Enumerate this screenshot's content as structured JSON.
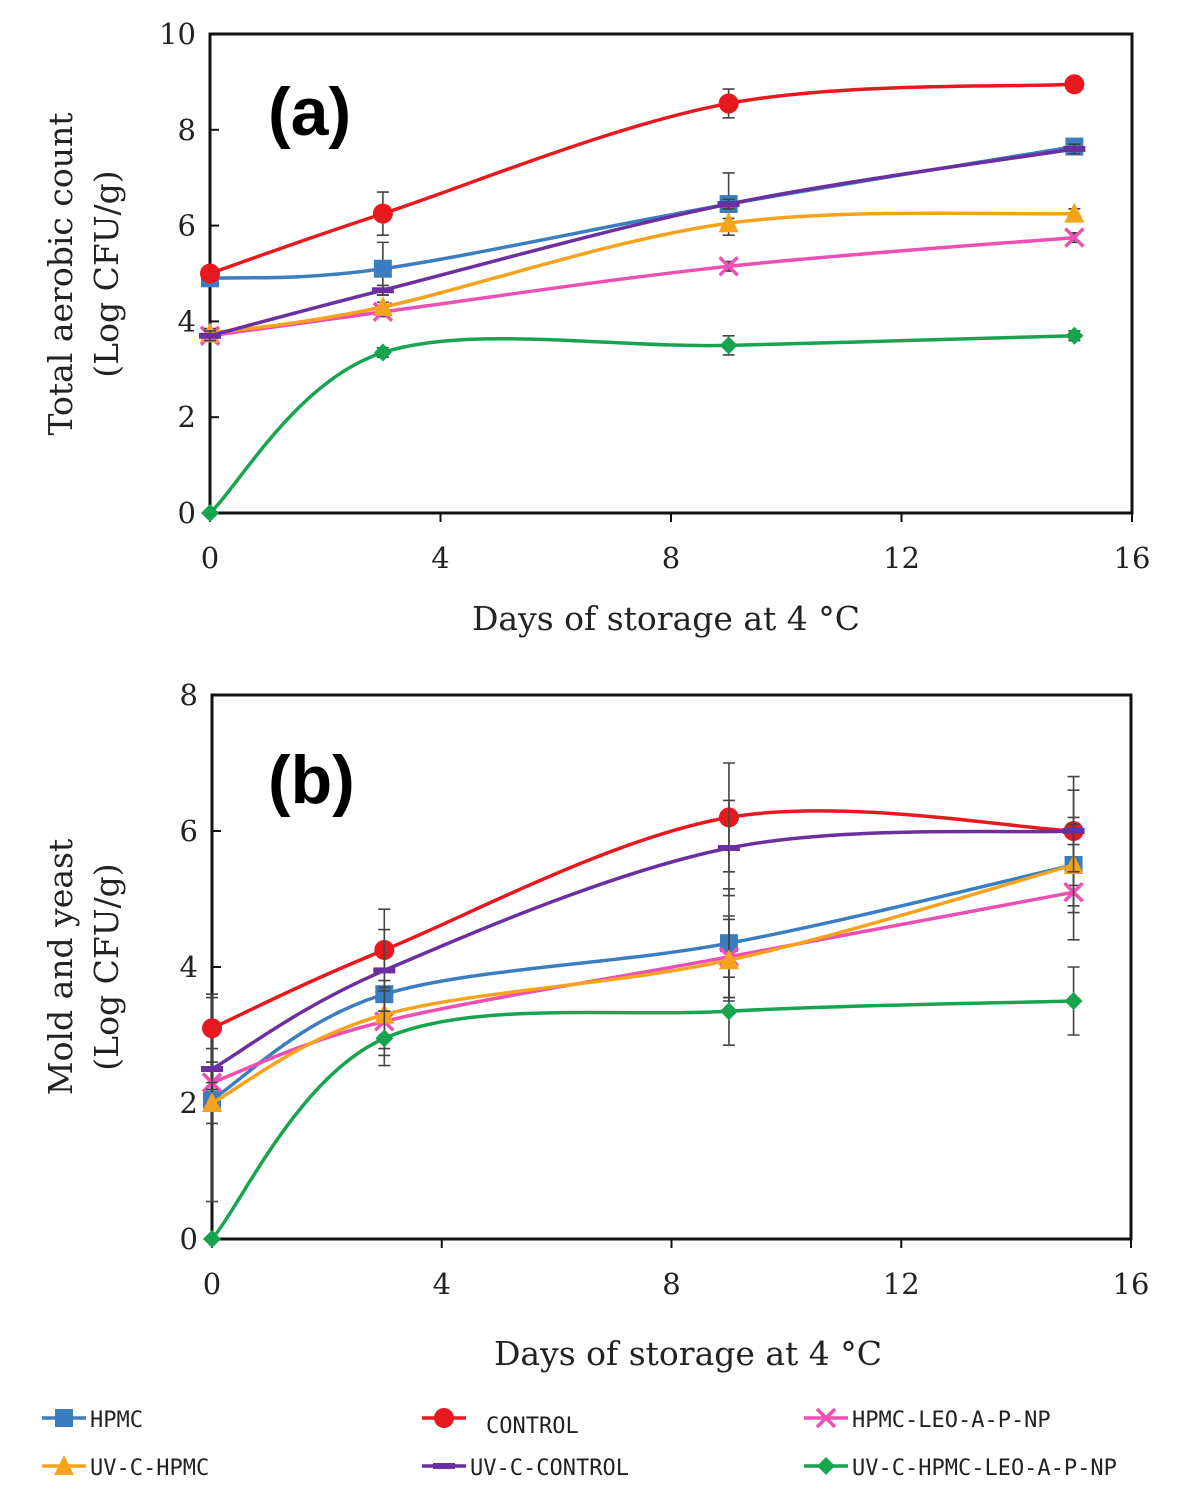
{
  "series_styles": [
    {
      "key": "HPMC",
      "color": "#3a7dc0",
      "marker": "square"
    },
    {
      "key": "CONTROL",
      "color": "#e8181f",
      "marker": "circle"
    },
    {
      "key": "HPMC-LEO-A-P-NP",
      "color": "#ee4fb3",
      "marker": "x"
    },
    {
      "key": "UV-C-HPMC",
      "color": "#f5a21c",
      "marker": "triangle"
    },
    {
      "key": "UV-C-CONTROL",
      "color": "#6b2fa0",
      "marker": "dash"
    },
    {
      "key": "UV-C-HPMC-LEO-A-P-NP",
      "color": "#17a450",
      "marker": "diamond"
    }
  ],
  "legend": {
    "items": [
      "HPMC",
      "CONTROL",
      "HPMC-LEO-A-P-NP",
      "UV-C-HPMC",
      "UV-C-CONTROL",
      "UV-C-HPMC-LEO-A-P-NP"
    ]
  },
  "chart_data": [
    {
      "type": "line",
      "panel_label": "(a)",
      "xlabel": "Days of storage at 4 °C",
      "ylabel_line1": "Total aerobic count",
      "ylabel_line2": "(Log  CFU/g)",
      "xlim": [
        0,
        16
      ],
      "ylim": [
        0,
        10
      ],
      "xticks": [
        "0",
        "4",
        "8",
        "12",
        "16"
      ],
      "yticks": [
        "0",
        "2",
        "4",
        "6",
        "8",
        "10"
      ],
      "x": [
        0,
        3,
        9,
        15
      ],
      "series": [
        {
          "name": "HPMC",
          "values": [
            4.9,
            5.1,
            6.45,
            7.65
          ],
          "errors": [
            0.1,
            0.55,
            0.65,
            0.1
          ]
        },
        {
          "name": "CONTROL",
          "values": [
            5.0,
            6.25,
            8.55,
            8.95
          ],
          "errors": [
            0.1,
            0.45,
            0.3,
            0.1
          ]
        },
        {
          "name": "HPMC-LEO-A-P-NP",
          "values": [
            3.7,
            4.2,
            5.15,
            5.75
          ],
          "errors": [
            0.1,
            0.1,
            0.1,
            0.1
          ]
        },
        {
          "name": "UV-C-HPMC",
          "values": [
            3.75,
            4.3,
            6.05,
            6.25
          ],
          "errors": [
            0.1,
            0.1,
            0.1,
            0.1
          ]
        },
        {
          "name": "UV-C-CONTROL",
          "values": [
            3.7,
            4.65,
            6.45,
            7.6
          ],
          "errors": [
            0.1,
            0.1,
            0.1,
            0.1
          ]
        },
        {
          "name": "UV-C-HPMC-LEO-A-P-NP",
          "values": [
            0.0,
            3.35,
            3.5,
            3.7
          ],
          "errors": [
            0.0,
            0.1,
            0.2,
            0.1
          ]
        }
      ]
    },
    {
      "type": "line",
      "panel_label": "(b)",
      "xlabel": "Days of storage at 4 °C",
      "ylabel_line1": "Mold and yeast",
      "ylabel_line2": "(Log CFU/g)",
      "xlim": [
        0,
        16
      ],
      "ylim": [
        0,
        8
      ],
      "xticks": [
        "0",
        "4",
        "8",
        "12",
        "16"
      ],
      "yticks": [
        "0",
        "2",
        "4",
        "6",
        "8"
      ],
      "x": [
        0,
        3,
        9,
        15
      ],
      "series": [
        {
          "name": "HPMC",
          "values": [
            2.05,
            3.6,
            4.35,
            5.5
          ],
          "errors": [
            1.5,
            0.6,
            0.8,
            0.7
          ]
        },
        {
          "name": "CONTROL",
          "values": [
            3.1,
            4.25,
            6.2,
            6.0
          ],
          "errors": [
            0.5,
            0.6,
            0.8,
            0.8
          ]
        },
        {
          "name": "HPMC-LEO-A-P-NP",
          "values": [
            2.3,
            3.2,
            4.15,
            5.1
          ],
          "errors": [
            0.3,
            0.5,
            0.6,
            0.7
          ]
        },
        {
          "name": "UV-C-HPMC",
          "values": [
            2.0,
            3.3,
            4.1,
            5.5
          ],
          "errors": [
            0.3,
            0.5,
            0.6,
            0.6
          ]
        },
        {
          "name": "UV-C-CONTROL",
          "values": [
            2.5,
            3.95,
            5.75,
            6.0
          ],
          "errors": [
            0.3,
            0.6,
            0.7,
            0.6
          ]
        },
        {
          "name": "UV-C-HPMC-LEO-A-P-NP",
          "values": [
            0.0,
            2.95,
            3.35,
            3.5
          ],
          "errors": [
            0.0,
            0.4,
            0.5,
            0.5
          ]
        }
      ]
    }
  ]
}
